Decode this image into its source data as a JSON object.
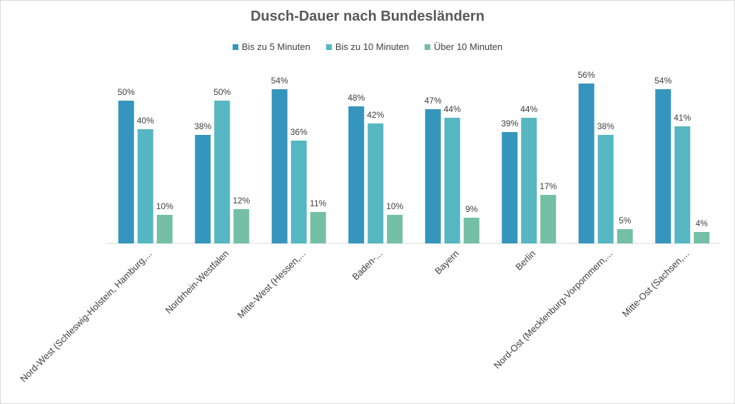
{
  "chart_data": {
    "type": "bar",
    "title": "Dusch-Dauer nach Bundesländern",
    "categories": [
      "Nord-West (Schleswig-Holstein, Hamburg,...",
      "Nordrhein-Westfalen",
      "Mitte-West (Hessen,...",
      "Baden-...",
      "Bayern",
      "Berlin",
      "Nord-Ost (Mecklenburg-Vorpommern,...",
      "Mitte-Ost (Sachsen,..."
    ],
    "series": [
      {
        "name": "Bis zu 5 Minuten",
        "color": "#3595bd",
        "values": [
          50,
          38,
          54,
          48,
          47,
          39,
          56,
          54
        ]
      },
      {
        "name": "Bis zu 10 Minuten",
        "color": "#56b6c2",
        "values": [
          40,
          50,
          36,
          42,
          44,
          44,
          38,
          41
        ]
      },
      {
        "name": "Über 10 Minuten",
        "color": "#74bfa6",
        "values": [
          10,
          12,
          11,
          10,
          9,
          17,
          5,
          4
        ]
      }
    ],
    "value_suffix": "%",
    "legend_position": "top",
    "grid": false
  }
}
